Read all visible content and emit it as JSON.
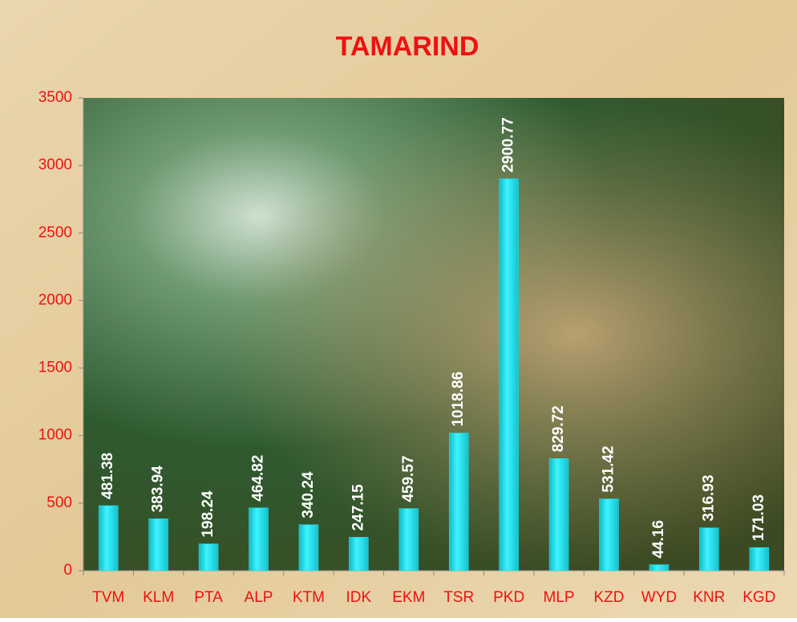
{
  "chart_data": {
    "type": "bar",
    "title": "TAMARIND",
    "categories": [
      "TVM",
      "KLM",
      "PTA",
      "ALP",
      "KTM",
      "IDK",
      "EKM",
      "TSR",
      "PKD",
      "MLP",
      "KZD",
      "WYD",
      "KNR",
      "KGD"
    ],
    "values": [
      481.38,
      383.94,
      198.24,
      464.82,
      340.24,
      247.15,
      459.57,
      1018.86,
      2900.77,
      829.72,
      531.42,
      44.16,
      316.93,
      171.03
    ],
    "color": "#22e5f0",
    "ylim": [
      0,
      3500
    ],
    "yticks": [
      0,
      500,
      1000,
      1500,
      2000,
      2500,
      3000,
      3500
    ],
    "grid": false
  }
}
